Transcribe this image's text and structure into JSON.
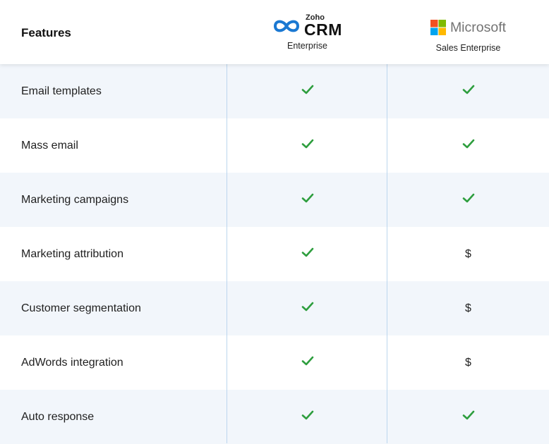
{
  "header": {
    "feature_label": "Features",
    "zoho": {
      "brand_small": "Zoho",
      "brand_big": "CRM",
      "edition": "Enterprise"
    },
    "microsoft": {
      "brand": "Microsoft",
      "edition": "Sales Enterprise"
    }
  },
  "icons": {
    "check": "check-icon",
    "paid": "$"
  },
  "colors": {
    "check": "#2e9e3e",
    "row_shade": "#f2f6fb",
    "divider": "#bcd6ee",
    "zoho_blue": "#1a78d2"
  },
  "rows": [
    {
      "label": "Email templates",
      "zoho": "check",
      "microsoft": "check"
    },
    {
      "label": "Mass email",
      "zoho": "check",
      "microsoft": "check"
    },
    {
      "label": "Marketing campaigns",
      "zoho": "check",
      "microsoft": "check"
    },
    {
      "label": "Marketing attribution",
      "zoho": "check",
      "microsoft": "$"
    },
    {
      "label": "Customer segmentation",
      "zoho": "check",
      "microsoft": "$"
    },
    {
      "label": "AdWords integration",
      "zoho": "check",
      "microsoft": "$"
    },
    {
      "label": "Auto response",
      "zoho": "check",
      "microsoft": "check"
    }
  ]
}
